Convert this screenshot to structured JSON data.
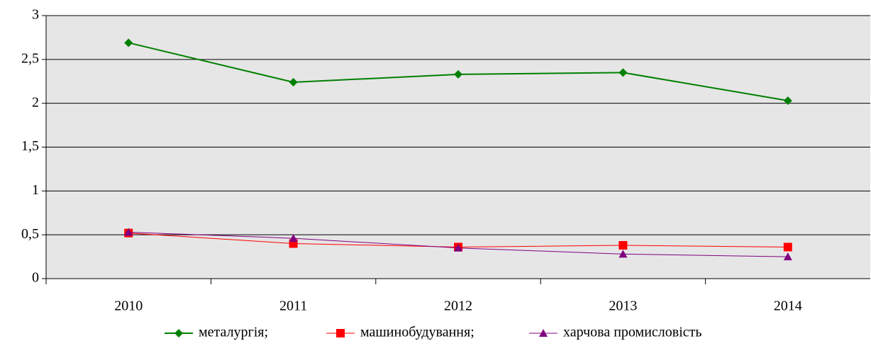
{
  "chart_data": {
    "type": "line",
    "categories": [
      "2010",
      "2011",
      "2012",
      "2013",
      "2014"
    ],
    "series": [
      {
        "name": "металургія;",
        "color": "#008000",
        "marker": "diamond",
        "values": [
          2.69,
          2.24,
          2.33,
          2.35,
          2.03
        ]
      },
      {
        "name": "машинобудування;",
        "color": "#ff0000",
        "marker": "square",
        "values": [
          0.52,
          0.4,
          0.36,
          0.38,
          0.36
        ]
      },
      {
        "name": "харчова промисловість",
        "color": "#800080",
        "marker": "triangle",
        "values": [
          0.53,
          0.46,
          0.35,
          0.28,
          0.25
        ]
      }
    ],
    "ylim": [
      0,
      3
    ],
    "yticks": [
      0,
      {
        "value": 0.5,
        "label": "0,5"
      },
      1,
      {
        "value": 1.5,
        "label": "1,5"
      },
      2,
      {
        "value": 2.5,
        "label": "2,5"
      },
      3
    ],
    "grid": true,
    "legend": "bottom"
  }
}
